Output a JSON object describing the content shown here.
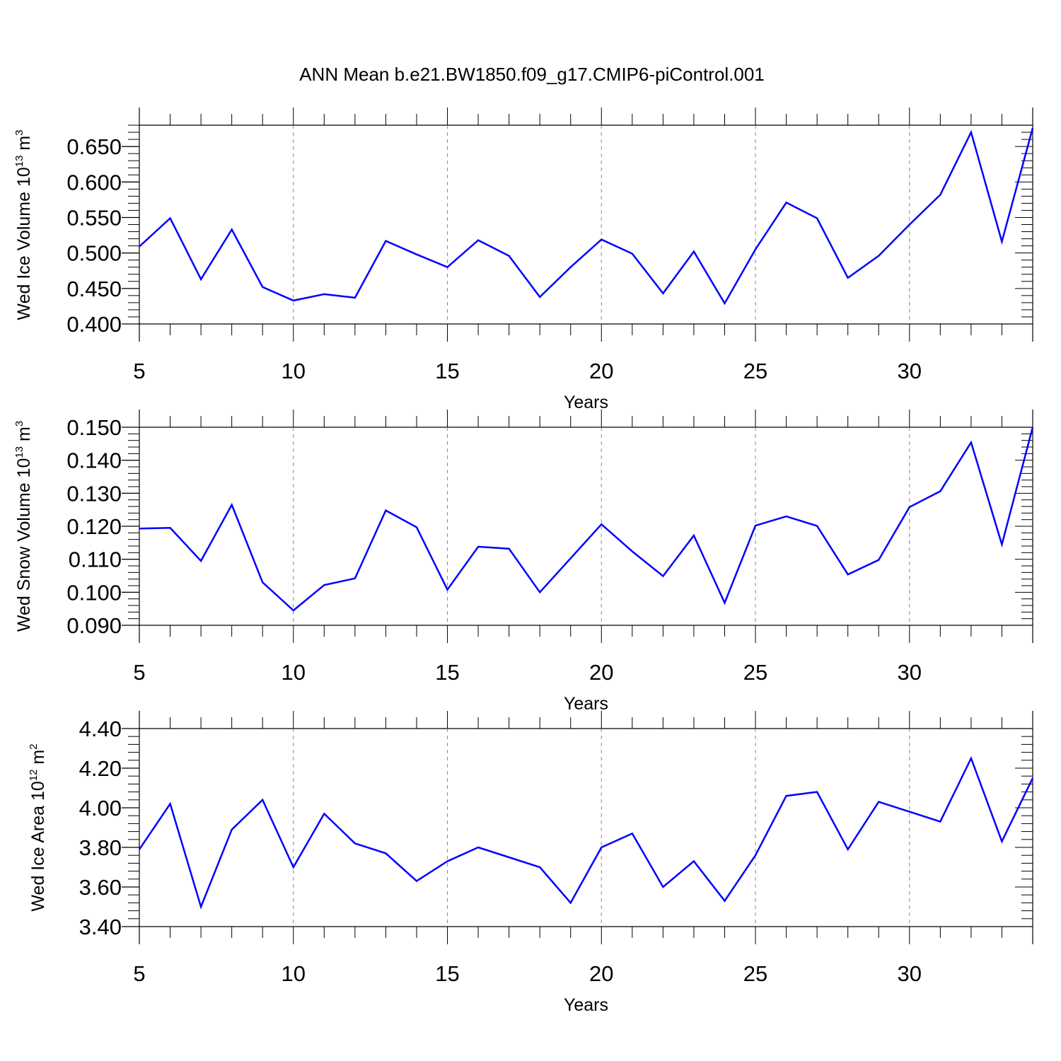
{
  "title": "ANN Mean b.e21.BW1850.f09_g17.CMIP6-piControl.001",
  "colors": {
    "line": "#0000ff",
    "axes": "#000000",
    "grid": "#888888"
  },
  "chart_data": [
    {
      "type": "line",
      "xlabel": "Years",
      "ylabel": "Wed Ice Volume 10",
      "ylabel_exp": "13",
      "ylabel_unit": " m",
      "ylabel_unit_exp": "3",
      "xlim": [
        5,
        34
      ],
      "ylim": [
        0.4,
        0.68
      ],
      "xticks": [
        5,
        10,
        15,
        20,
        25,
        30
      ],
      "xtick_labels": [
        "5",
        "10",
        "15",
        "20",
        "25",
        "30"
      ],
      "yticks": [
        0.4,
        0.45,
        0.5,
        0.55,
        0.6,
        0.65
      ],
      "ytick_labels": [
        "0.400",
        "0.450",
        "0.500",
        "0.550",
        "0.600",
        "0.650"
      ],
      "grid": "vertical dashed at major x ticks",
      "x": [
        5,
        6,
        7,
        8,
        9,
        10,
        11,
        12,
        13,
        14,
        15,
        16,
        17,
        18,
        19,
        20,
        21,
        22,
        23,
        24,
        25,
        26,
        27,
        28,
        29,
        30,
        31,
        32,
        33,
        34
      ],
      "series": [
        {
          "values": [
            0.509,
            0.549,
            0.463,
            0.533,
            0.452,
            0.433,
            0.442,
            0.437,
            0.517,
            0.498,
            0.48,
            0.518,
            0.496,
            0.438,
            0.48,
            0.519,
            0.499,
            0.443,
            0.502,
            0.429,
            0.505,
            0.571,
            0.549,
            0.465,
            0.496,
            0.54,
            0.582,
            0.67,
            0.516,
            0.676
          ]
        }
      ]
    },
    {
      "type": "line",
      "xlabel": "Years",
      "ylabel": "Wed Snow Volume 10",
      "ylabel_exp": "13",
      "ylabel_unit": " m",
      "ylabel_unit_exp": "3",
      "xlim": [
        5,
        34
      ],
      "ylim": [
        0.09,
        0.15
      ],
      "xticks": [
        5,
        10,
        15,
        20,
        25,
        30
      ],
      "xtick_labels": [
        "5",
        "10",
        "15",
        "20",
        "25",
        "30"
      ],
      "yticks": [
        0.09,
        0.1,
        0.11,
        0.12,
        0.13,
        0.14,
        0.15
      ],
      "ytick_labels": [
        "0.090",
        "0.100",
        "0.110",
        "0.120",
        "0.130",
        "0.140",
        "0.150"
      ],
      "grid": "vertical dashed at major x ticks",
      "x": [
        5,
        6,
        7,
        8,
        9,
        10,
        11,
        12,
        13,
        14,
        15,
        16,
        17,
        18,
        19,
        20,
        21,
        22,
        23,
        24,
        25,
        26,
        27,
        28,
        29,
        30,
        31,
        32,
        33,
        34
      ],
      "series": [
        {
          "values": [
            0.1193,
            0.1195,
            0.1095,
            0.1265,
            0.103,
            0.0945,
            0.1022,
            0.1042,
            0.1248,
            0.1197,
            0.1008,
            0.1138,
            0.1132,
            0.1,
            0.1103,
            0.1206,
            0.1124,
            0.1049,
            0.1172,
            0.0968,
            0.1202,
            0.123,
            0.1201,
            0.1054,
            0.1098,
            0.1258,
            0.1306,
            0.1454,
            0.1145,
            0.15
          ]
        }
      ]
    },
    {
      "type": "line",
      "xlabel": "Years",
      "ylabel": "Wed Ice Area 10",
      "ylabel_exp": "12",
      "ylabel_unit": " m",
      "ylabel_unit_exp": "2",
      "xlim": [
        5,
        34
      ],
      "ylim": [
        3.4,
        4.4
      ],
      "xticks": [
        5,
        10,
        15,
        20,
        25,
        30
      ],
      "xtick_labels": [
        "5",
        "10",
        "15",
        "20",
        "25",
        "30"
      ],
      "yticks": [
        3.4,
        3.6,
        3.8,
        4.0,
        4.2,
        4.4
      ],
      "ytick_labels": [
        "3.40",
        "3.60",
        "3.80",
        "4.00",
        "4.20",
        "4.40"
      ],
      "grid": "vertical dashed at major x ticks",
      "x": [
        5,
        6,
        7,
        8,
        9,
        10,
        11,
        12,
        13,
        14,
        15,
        16,
        17,
        18,
        19,
        20,
        21,
        22,
        23,
        24,
        25,
        26,
        27,
        28,
        29,
        30,
        31,
        32,
        33,
        34
      ],
      "series": [
        {
          "values": [
            3.79,
            4.02,
            3.5,
            3.89,
            4.04,
            3.7,
            3.97,
            3.82,
            3.77,
            3.63,
            3.73,
            3.8,
            3.75,
            3.7,
            3.52,
            3.8,
            3.87,
            3.6,
            3.73,
            3.53,
            3.76,
            4.06,
            4.08,
            3.79,
            4.03,
            3.98,
            3.93,
            4.25,
            3.83,
            4.15
          ]
        }
      ]
    }
  ]
}
